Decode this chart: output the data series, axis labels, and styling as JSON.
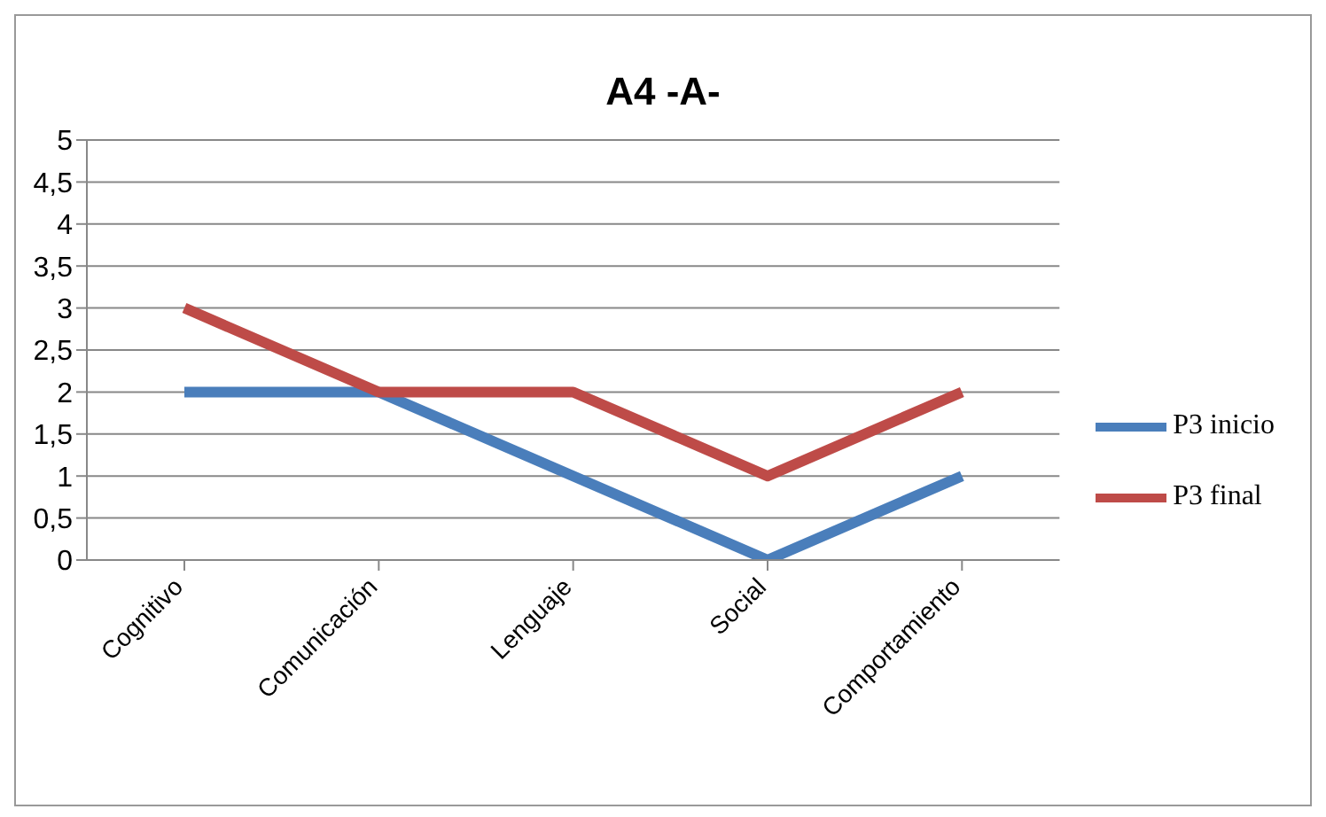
{
  "chart_data": {
    "type": "line",
    "title": "A4 -A-",
    "categories": [
      "Cognitivo",
      "Comunicación",
      "Lenguaje",
      "Social",
      "Comportamiento"
    ],
    "series": [
      {
        "name": "P3 inicio",
        "color": "#4a7ebb",
        "values": [
          2,
          2,
          1,
          0,
          1
        ]
      },
      {
        "name": "P3 final",
        "color": "#be4b48",
        "values": [
          3,
          2,
          2,
          1,
          2
        ]
      }
    ],
    "ylim": [
      0,
      5
    ],
    "yticks": [
      0,
      {
        "value": 0.5,
        "label": "0,5"
      },
      1,
      {
        "value": 1.5,
        "label": "1,5"
      },
      2,
      {
        "value": 2.5,
        "label": "2,5"
      },
      3,
      {
        "value": 3.5,
        "label": "3,5"
      },
      4,
      {
        "value": 4.5,
        "label": "4,5"
      },
      5
    ],
    "grid": "y",
    "legend": "right",
    "marker": "none",
    "line_style": "solid"
  }
}
